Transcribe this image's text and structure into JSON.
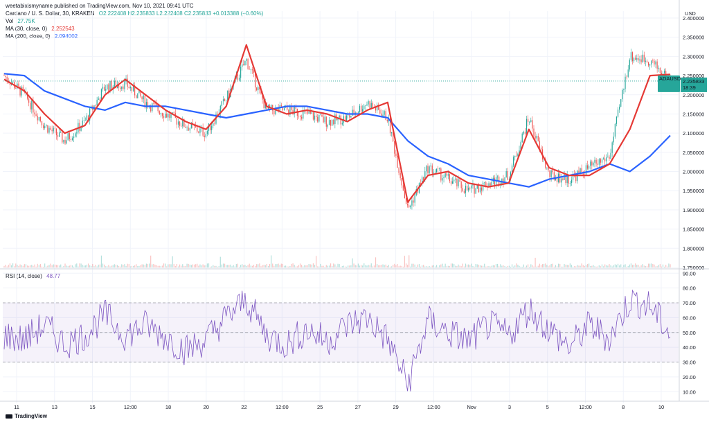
{
  "header": {
    "publisher": "weetabixismyname published on TradingView.com, Nov 10, 2021 09:41 UTC",
    "symbol": "Cardano / U. S. Dollar, 30, KRAKEN",
    "ohlc": "O2.222408 H2.235833 L2.222408 C2.235833 +0.013388 (+0.60%)",
    "volume_label": "Vol",
    "volume_value": "27.75K",
    "ma30_label": "MA (30, close, 0)",
    "ma30_value": "2.252543",
    "ma200_label": "MA (200, close, 0)",
    "ma200_value": "2.094002",
    "rsi_label": "RSI (14, close)",
    "rsi_value": "48.77"
  },
  "price_label": {
    "symbol": "ADAUSD",
    "price": "2.235833",
    "countdown": "18:39"
  },
  "footer": {
    "brand": "TradingView"
  },
  "colors": {
    "ma30": "#e53935",
    "ma200": "#2962ff",
    "rsi": "#7e57c2",
    "up": "#26a69a",
    "down": "#ef5350"
  },
  "chart_data": [
    {
      "type": "line",
      "title": "Cardano / U. S. Dollar, 30, KRAKEN",
      "currency": "USD",
      "x_ticks": [
        "11",
        "13",
        "15",
        "12:00",
        "18",
        "20",
        "22",
        "12:00",
        "25",
        "27",
        "29",
        "12:00",
        "Nov",
        "3",
        "5",
        "12:00",
        "8",
        "10"
      ],
      "y_ticks": [
        "2.400000",
        "2.350000",
        "2.300000",
        "2.250000",
        "2.200000",
        "2.150000",
        "2.100000",
        "2.050000",
        "2.000000",
        "1.950000",
        "1.900000",
        "1.850000",
        "1.800000",
        "1.750000"
      ],
      "ylim": [
        1.75,
        2.4
      ],
      "grid": true,
      "current_price": 2.235833,
      "series": [
        {
          "name": "MA (30, close, 0)",
          "values": [
            2.24,
            2.21,
            2.15,
            2.1,
            2.12,
            2.2,
            2.24,
            2.2,
            2.16,
            2.13,
            2.11,
            2.17,
            2.33,
            2.17,
            2.15,
            2.16,
            2.15,
            2.13,
            2.16,
            2.18,
            1.92,
            1.99,
            2.0,
            1.97,
            1.96,
            1.97,
            2.11,
            2.01,
            1.99,
            1.99,
            2.02,
            2.11,
            2.25,
            2.253
          ]
        },
        {
          "name": "MA (200, close, 0)",
          "values": [
            2.255,
            2.25,
            2.21,
            2.19,
            2.17,
            2.16,
            2.18,
            2.17,
            2.17,
            2.16,
            2.15,
            2.14,
            2.15,
            2.16,
            2.17,
            2.17,
            2.16,
            2.15,
            2.15,
            2.14,
            2.08,
            2.04,
            2.02,
            1.99,
            1.98,
            1.97,
            1.96,
            1.98,
            1.99,
            2.0,
            2.02,
            2.0,
            2.04,
            2.094
          ]
        },
        {
          "name": "Price",
          "values": [
            2.25,
            2.2,
            2.12,
            2.08,
            2.13,
            2.22,
            2.23,
            2.18,
            2.15,
            2.12,
            2.1,
            2.19,
            2.29,
            2.16,
            2.16,
            2.15,
            2.13,
            2.14,
            2.18,
            2.14,
            1.9,
            2.01,
            1.98,
            1.95,
            1.97,
            1.99,
            2.14,
            1.99,
            1.98,
            2.01,
            2.04,
            2.3,
            2.29,
            2.235833
          ]
        }
      ]
    },
    {
      "type": "line",
      "title": "RSI (14, close)",
      "y_ticks": [
        "90.00",
        "80.00",
        "70.00",
        "60.00",
        "50.00",
        "40.00",
        "30.00",
        "20.00",
        "10.00"
      ],
      "ylim": [
        5,
        92
      ],
      "bands": [
        30,
        50,
        70
      ],
      "series": [
        {
          "name": "RSI (14, close)",
          "values": [
            48,
            45,
            55,
            42,
            48,
            62,
            48,
            55,
            47,
            38,
            45,
            60,
            72,
            48,
            42,
            52,
            44,
            55,
            60,
            45,
            15,
            58,
            50,
            44,
            55,
            48,
            66,
            52,
            40,
            55,
            46,
            72,
            68,
            48.77
          ]
        }
      ]
    }
  ]
}
